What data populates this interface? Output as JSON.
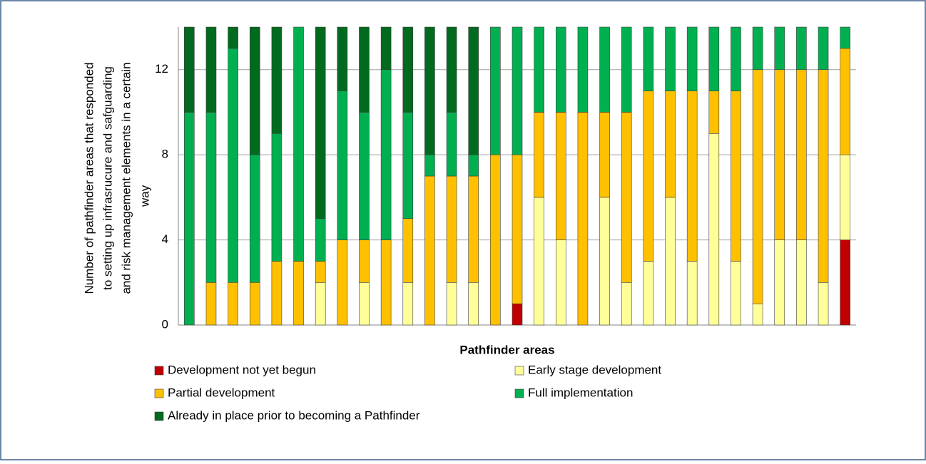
{
  "chart_data": {
    "type": "stacked_bar",
    "x_label": "Pathfinder areas",
    "y_label": [
      "Number of pathfinder areas  that responded",
      "to setting up infrasrucure and safguarding",
      "and risk management elements in a certain",
      "way"
    ],
    "categories": [
      null,
      null,
      null,
      null,
      null,
      null,
      null,
      null,
      null,
      null,
      null,
      null,
      null,
      null,
      null,
      null,
      null,
      null,
      null,
      null,
      null,
      null,
      null,
      null,
      null,
      null,
      null,
      null,
      null,
      null,
      null
    ],
    "series": [
      {
        "name": "Development not yet begun",
        "color": "#c00000",
        "values": [
          0,
          0,
          0,
          0,
          0,
          0,
          0,
          0,
          0,
          0,
          0,
          0,
          0,
          0,
          0,
          1,
          0,
          0,
          0,
          0,
          0,
          0,
          0,
          0,
          0,
          0,
          0,
          0,
          0,
          0,
          4
        ]
      },
      {
        "name": "Early stage development",
        "color": "#ffff99",
        "values": [
          0,
          0,
          0,
          0,
          0,
          0,
          2,
          0,
          2,
          0,
          2,
          0,
          2,
          2,
          0,
          0,
          6,
          4,
          0,
          6,
          2,
          3,
          6,
          3,
          9,
          3,
          1,
          4,
          4,
          2,
          4
        ]
      },
      {
        "name": "Partial development",
        "color": "#ffc000",
        "values": [
          0,
          2,
          2,
          2,
          3,
          3,
          1,
          4,
          2,
          4,
          3,
          7,
          5,
          5,
          8,
          7,
          4,
          6,
          10,
          4,
          8,
          8,
          5,
          8,
          2,
          8,
          11,
          8,
          8,
          10,
          5
        ]
      },
      {
        "name": "Full implementation",
        "color": "#00b050",
        "values": [
          10,
          8,
          11,
          6,
          6,
          11,
          2,
          7,
          6,
          8,
          5,
          1,
          3,
          1,
          6,
          6,
          4,
          4,
          4,
          4,
          4,
          3,
          3,
          3,
          3,
          3,
          2,
          2,
          2,
          2,
          1
        ]
      },
      {
        "name": "Already in place prior to becoming a Pathfinder",
        "color": "#006a1e",
        "values": [
          4,
          4,
          1,
          6,
          5,
          0,
          9,
          3,
          4,
          2,
          4,
          6,
          4,
          6,
          0,
          0,
          0,
          0,
          0,
          0,
          0,
          0,
          0,
          0,
          0,
          0,
          0,
          0,
          0,
          0,
          0
        ]
      }
    ],
    "ylim": [
      0,
      14
    ],
    "yticks": [
      0,
      4,
      8,
      12
    ],
    "grid": true
  }
}
